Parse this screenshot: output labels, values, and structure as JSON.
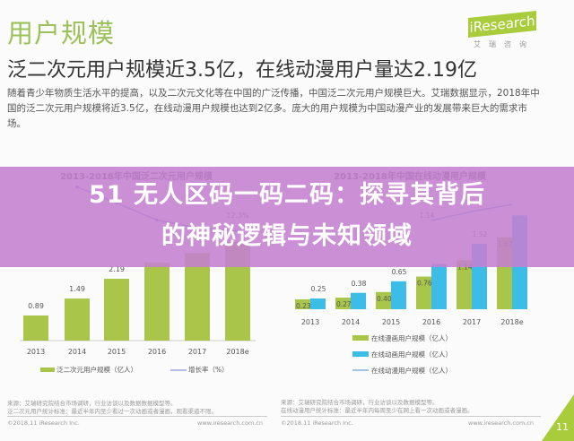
{
  "page": {
    "title": "用户规模",
    "logo": "iResearch",
    "logo_sub": "艾瑞咨询",
    "headline": "泛二次元用户规模近3.5亿，在线动漫用户量达2.19亿",
    "paragraph": "随着青少年物质生活水平的提高，以及二次元文化等在中国的广泛传播，中国泛二次元用户规模巨大。艾瑞数据显示，2018年中国的泛二次元用户规模将近3.5亿，在线动漫用户规模也达到2亿多。庞大的用户规模为中国动漫产业的发展带来巨大的需求市场。",
    "page_number": "11"
  },
  "banner": {
    "line1": "51 无人区码一码二码：探寻其背后",
    "line2": "的神秘逻辑与未知领域",
    "color": "#c480d0"
  },
  "footer_left": {
    "source": "来源：艾瑞研究院结合市场调研，行业访谈以及数据数据模型等。",
    "note": "泛二次元用户统计标准：最近半年内至少看过一次动画或者漫画，观看渠道不限。",
    "copyright": "©2018.11 iResearch Inc.",
    "url": "www.iresearch.com.cn"
  },
  "footer_right": {
    "source": "来源：艾瑞研究院结合市场调研，行业访谈以及数据模型等。",
    "note": "在线动漫用户统计标准：最近半年内每周至少在网上看一次动画或者漫画。",
    "copyright": "©2018.11 iResearch Inc.",
    "url": "www.iresearch.com.cn"
  },
  "chart_data": [
    {
      "type": "bar",
      "title": "2013-2018年中国泛二次元用户规模",
      "categories": [
        "2013",
        "2014",
        "2015",
        "2016",
        "2017",
        "2018e"
      ],
      "series": [
        {
          "name": "泛二次元用户规模（亿人）",
          "values": [
            0.89,
            1.49,
            2.19,
            2.76,
            3.1,
            3.5
          ],
          "labels": [
            "0.89",
            "1.49",
            "2.19",
            "",
            "",
            ""
          ],
          "color": "#a9c64a"
        },
        {
          "name": "增长率（%）",
          "type": "line",
          "values": [
            null,
            67,
            47,
            26,
            16,
            12.3
          ],
          "labels": [
            "",
            "",
            "",
            "",
            "",
            "12.3%"
          ],
          "color": "#6a7bd0"
        }
      ]
    },
    {
      "type": "bar",
      "title": "2013-2018年中国在线动漫用户规模",
      "categories": [
        "2013",
        "2014",
        "2015",
        "2016",
        "2017",
        "2018e"
      ],
      "series": [
        {
          "name": "在线漫画用户规模（亿人）",
          "values": [
            0.23,
            0.27,
            0.4,
            0.76,
            1.14,
            1.67
          ],
          "labels": [
            "0.23",
            "0.27",
            "0.40",
            "0.76",
            "1.14",
            "1.67"
          ],
          "color": "#a9c64a"
        },
        {
          "name": "在线动画用户规模（亿人）",
          "values": [
            0.25,
            0.38,
            0.65,
            1.05,
            1.52,
            2.18
          ],
          "labels": [
            "0.25",
            "0.38",
            "0.65",
            "",
            "1.52",
            ""
          ],
          "color": "#3cbde8"
        },
        {
          "name": "在线动漫用户规模（亿人）",
          "type": "line",
          "values": [
            null,
            null,
            null,
            1.14,
            1.5,
            2.19
          ],
          "labels": [
            "",
            "",
            "",
            "1.14",
            "",
            ""
          ],
          "color": "#4a8fc0"
        }
      ]
    }
  ]
}
